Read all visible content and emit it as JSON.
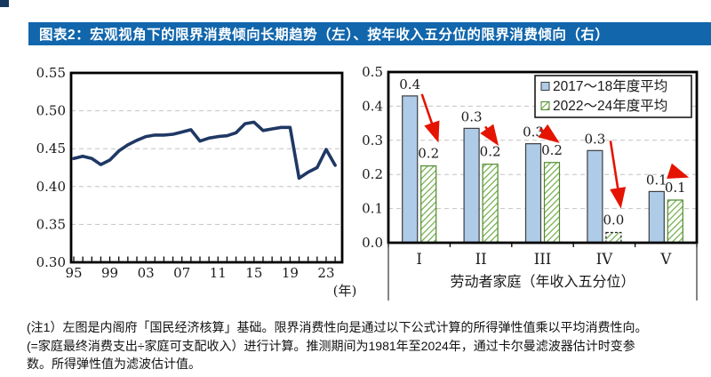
{
  "title_bar": {
    "text": "图表2：宏观视角下的限界消费倾向长期趋势（左）、按年收入五分位的限界消费倾向（右）",
    "bg_color": "#1166AC",
    "text_color": "#FFFFFF"
  },
  "chart_data": [
    {
      "type": "line",
      "name": "宏观视角下的限界消费倾向长期趋势",
      "x": [
        1995,
        1996,
        1997,
        1998,
        1999,
        2000,
        2001,
        2002,
        2003,
        2004,
        2005,
        2006,
        2007,
        2008,
        2009,
        2010,
        2011,
        2012,
        2013,
        2014,
        2015,
        2016,
        2017,
        2018,
        2019,
        2020,
        2021,
        2022,
        2023,
        2024
      ],
      "values": [
        0.437,
        0.44,
        0.437,
        0.429,
        0.435,
        0.447,
        0.455,
        0.461,
        0.466,
        0.468,
        0.468,
        0.469,
        0.472,
        0.475,
        0.46,
        0.464,
        0.466,
        0.467,
        0.471,
        0.483,
        0.485,
        0.474,
        0.476,
        0.478,
        0.478,
        0.411,
        0.419,
        0.425,
        0.449,
        0.428
      ],
      "ylim": [
        0.3,
        0.55
      ],
      "y_ticks": [
        "0.55",
        "0.50",
        "0.45",
        "0.40",
        "0.35",
        "0.30"
      ],
      "x_tick_labels": [
        "95",
        "99",
        "03",
        "07",
        "11",
        "15",
        "19",
        "23"
      ],
      "x_axis_unit": "(年)",
      "line_color": "#1F3864",
      "grid": "dashed"
    },
    {
      "type": "bar",
      "name": "按年收入五分位的限界消费倾向",
      "categories": [
        "I",
        "II",
        "III",
        "IV",
        "V"
      ],
      "series": [
        {
          "name": "2017～18年度平均",
          "values": [
            0.43,
            0.335,
            0.29,
            0.27,
            0.15
          ],
          "labels": [
            "0.4",
            "0.3",
            "0.3",
            "0.3",
            "0.1"
          ],
          "fill": "#AECBE8",
          "style": "solid"
        },
        {
          "name": "2022～24年度平均",
          "values": [
            0.225,
            0.23,
            0.235,
            0.03,
            0.125
          ],
          "labels": [
            "0.2",
            "0.2",
            "0.2",
            "0.0",
            "0.1"
          ],
          "fill": "#6FAC46",
          "style": "hatched",
          "dashed_bars": [
            3
          ]
        }
      ],
      "xlabel": "劳动者家庭（年收入五分位）",
      "ylim": [
        0,
        0.5
      ],
      "y_ticks": [
        "0.5",
        "0.4",
        "0.3",
        "0.2",
        "0.1",
        "0.0"
      ],
      "legend_position": "top-right",
      "arrow_color": "#E51400",
      "grid": "dashed"
    }
  ],
  "footnote": {
    "lines": [
      "(注1）左图是内阁府「国民经济核算」基础。限界消费性向是通过以下公式计算的所得弹性值乘以平均消费性向。",
      "(=家庭最终消费支出÷家庭可支配收入）进行计算。推测期间为1981年至2024年，通过卡尔曼滤波器估计时变参",
      "数。所得弹性值为滤波估计值。"
    ]
  }
}
